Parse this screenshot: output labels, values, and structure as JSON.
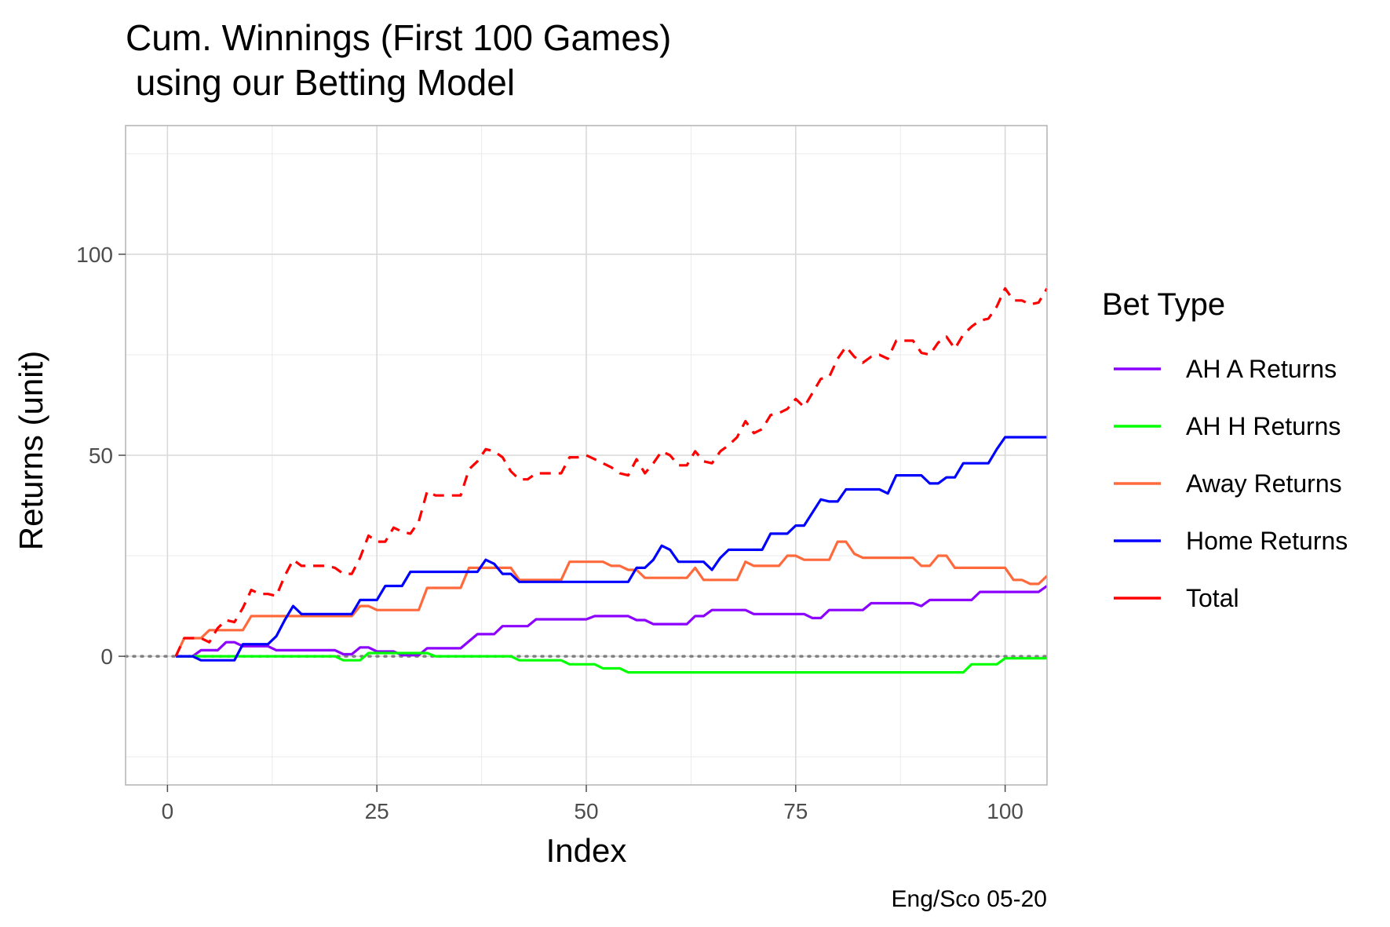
{
  "chart_data": {
    "type": "line",
    "title_lines": [
      "Cum. Winnings (First 100 Games)",
      " using our Betting Model"
    ],
    "xlabel": "Index",
    "ylabel": "Returns (unit)",
    "caption": "Eng/Sco 05-20",
    "xlim": [
      -5,
      105
    ],
    "ylim": [
      -32,
      132
    ],
    "x_ticks": [
      0,
      25,
      50,
      75,
      100
    ],
    "y_ticks": [
      0,
      50,
      100
    ],
    "x_tick_labels": [
      "0",
      "25",
      "50",
      "75",
      "100"
    ],
    "y_tick_labels": [
      "0",
      "50",
      "100"
    ],
    "grid": true,
    "reference_line": {
      "y": 0,
      "style": "dotted",
      "color": "#808080"
    },
    "legend": {
      "title": "Bet Type",
      "position": "right"
    },
    "series": [
      {
        "name": "AH A Returns",
        "color": "#8B00FF",
        "dash": "solid",
        "points": [
          [
            1,
            0
          ],
          [
            3,
            0
          ],
          [
            4,
            1.5
          ],
          [
            6,
            1.5
          ],
          [
            7,
            3.5
          ],
          [
            8,
            3.5
          ],
          [
            9,
            2.5
          ],
          [
            12,
            2.5
          ],
          [
            13,
            1.5
          ],
          [
            20,
            1.5
          ],
          [
            21,
            0.5
          ],
          [
            22,
            0.5
          ],
          [
            23,
            2.2
          ],
          [
            24,
            2.2
          ],
          [
            25,
            1.2
          ],
          [
            27,
            1.2
          ],
          [
            28,
            0.3
          ],
          [
            30,
            0.3
          ],
          [
            31,
            2
          ],
          [
            35,
            2
          ],
          [
            37,
            5.5
          ],
          [
            39,
            5.5
          ],
          [
            40,
            7.5
          ],
          [
            43,
            7.5
          ],
          [
            44,
            9.2
          ],
          [
            50,
            9.2
          ],
          [
            51,
            10
          ],
          [
            55,
            10
          ],
          [
            56,
            9
          ],
          [
            57,
            9
          ],
          [
            58,
            8
          ],
          [
            62,
            8
          ],
          [
            63,
            10
          ],
          [
            64,
            10
          ],
          [
            65,
            11.5
          ],
          [
            69,
            11.5
          ],
          [
            70,
            10.5
          ],
          [
            76,
            10.5
          ],
          [
            77,
            9.5
          ],
          [
            78,
            9.5
          ],
          [
            79,
            11.5
          ],
          [
            83,
            11.5
          ],
          [
            84,
            13.2
          ],
          [
            89,
            13.2
          ],
          [
            90,
            12.5
          ],
          [
            91,
            14
          ],
          [
            96,
            14
          ],
          [
            97,
            16
          ],
          [
            104,
            16
          ],
          [
            105,
            17.5
          ]
        ]
      },
      {
        "name": "AH H Returns",
        "color": "#00FF00",
        "dash": "solid",
        "points": [
          [
            1,
            0
          ],
          [
            20,
            0
          ],
          [
            21,
            -1
          ],
          [
            23,
            -1
          ],
          [
            24,
            0.8
          ],
          [
            31,
            0.8
          ],
          [
            32,
            0
          ],
          [
            41,
            0
          ],
          [
            42,
            -1
          ],
          [
            47,
            -1
          ],
          [
            48,
            -2
          ],
          [
            51,
            -2
          ],
          [
            52,
            -3
          ],
          [
            54,
            -3
          ],
          [
            55,
            -4
          ],
          [
            95,
            -4
          ],
          [
            96,
            -2
          ],
          [
            99,
            -2
          ],
          [
            100,
            -0.5
          ],
          [
            105,
            -0.5
          ]
        ]
      },
      {
        "name": "Away Returns",
        "color": "#FF6A3D",
        "dash": "solid",
        "points": [
          [
            1,
            0
          ],
          [
            2,
            4.5
          ],
          [
            4,
            4.5
          ],
          [
            5,
            6.5
          ],
          [
            9,
            6.5
          ],
          [
            10,
            10
          ],
          [
            22,
            10
          ],
          [
            23,
            12.5
          ],
          [
            24,
            12.5
          ],
          [
            25,
            11.5
          ],
          [
            30,
            11.5
          ],
          [
            31,
            17
          ],
          [
            35,
            17
          ],
          [
            36,
            22
          ],
          [
            41,
            22
          ],
          [
            42,
            19
          ],
          [
            47,
            19
          ],
          [
            48,
            23.5
          ],
          [
            52,
            23.5
          ],
          [
            53,
            22.5
          ],
          [
            54,
            22.5
          ],
          [
            55,
            21.5
          ],
          [
            56,
            21.5
          ],
          [
            57,
            19.5
          ],
          [
            62,
            19.5
          ],
          [
            63,
            22
          ],
          [
            64,
            19
          ],
          [
            68,
            19
          ],
          [
            69,
            23.5
          ],
          [
            70,
            22.5
          ],
          [
            73,
            22.5
          ],
          [
            74,
            25
          ],
          [
            75,
            25
          ],
          [
            76,
            24
          ],
          [
            79,
            24
          ],
          [
            80,
            28.5
          ],
          [
            81,
            28.5
          ],
          [
            82,
            25.5
          ],
          [
            83,
            24.5
          ],
          [
            89,
            24.5
          ],
          [
            90,
            22.5
          ],
          [
            91,
            22.5
          ],
          [
            92,
            25
          ],
          [
            93,
            25
          ],
          [
            94,
            22
          ],
          [
            100,
            22
          ],
          [
            101,
            19
          ],
          [
            102,
            19
          ],
          [
            103,
            18
          ],
          [
            104,
            18
          ],
          [
            105,
            20
          ]
        ]
      },
      {
        "name": "Home Returns",
        "color": "#0000FF",
        "dash": "solid",
        "points": [
          [
            1,
            0
          ],
          [
            3,
            0
          ],
          [
            4,
            -1
          ],
          [
            8,
            -1
          ],
          [
            9,
            3
          ],
          [
            12,
            3
          ],
          [
            13,
            5
          ],
          [
            14,
            9
          ],
          [
            15,
            12.5
          ],
          [
            16,
            10.5
          ],
          [
            22,
            10.5
          ],
          [
            23,
            14
          ],
          [
            25,
            14
          ],
          [
            26,
            17.5
          ],
          [
            28,
            17.5
          ],
          [
            29,
            21
          ],
          [
            35,
            21
          ],
          [
            37,
            21
          ],
          [
            38,
            24
          ],
          [
            39,
            23
          ],
          [
            40,
            20.5
          ],
          [
            41,
            20.5
          ],
          [
            42,
            18.5
          ],
          [
            55,
            18.5
          ],
          [
            56,
            22
          ],
          [
            57,
            22
          ],
          [
            58,
            24
          ],
          [
            59,
            27.5
          ],
          [
            60,
            26.5
          ],
          [
            61,
            23.5
          ],
          [
            64,
            23.5
          ],
          [
            65,
            21.5
          ],
          [
            66,
            24.5
          ],
          [
            67,
            26.5
          ],
          [
            71,
            26.5
          ],
          [
            72,
            30.5
          ],
          [
            74,
            30.5
          ],
          [
            75,
            32.5
          ],
          [
            76,
            32.5
          ],
          [
            78,
            39
          ],
          [
            79,
            38.5
          ],
          [
            80,
            38.5
          ],
          [
            81,
            41.5
          ],
          [
            85,
            41.5
          ],
          [
            86,
            40.5
          ],
          [
            87,
            45
          ],
          [
            90,
            45
          ],
          [
            91,
            43
          ],
          [
            92,
            43
          ],
          [
            93,
            44.5
          ],
          [
            94,
            44.5
          ],
          [
            95,
            48
          ],
          [
            98,
            48
          ],
          [
            99,
            51.5
          ],
          [
            100,
            54.5
          ],
          [
            105,
            54.5
          ]
        ]
      },
      {
        "name": "Total",
        "color": "#FF0000",
        "dash": "dashed",
        "points": [
          [
            1,
            0
          ],
          [
            2,
            4.5
          ],
          [
            4,
            4.5
          ],
          [
            5,
            3.5
          ],
          [
            6,
            7
          ],
          [
            7,
            9
          ],
          [
            8,
            8.5
          ],
          [
            9,
            12
          ],
          [
            10,
            16.5
          ],
          [
            11,
            15.5
          ],
          [
            12,
            15.5
          ],
          [
            13,
            15
          ],
          [
            14,
            20
          ],
          [
            15,
            24
          ],
          [
            16,
            22.5
          ],
          [
            19,
            22.5
          ],
          [
            20,
            22
          ],
          [
            21,
            20.5
          ],
          [
            22,
            20.5
          ],
          [
            23,
            24.5
          ],
          [
            24,
            30
          ],
          [
            25,
            28.5
          ],
          [
            26,
            28.5
          ],
          [
            27,
            32
          ],
          [
            28,
            31
          ],
          [
            29,
            30.5
          ],
          [
            30,
            33.5
          ],
          [
            31,
            41
          ],
          [
            32,
            40
          ],
          [
            35,
            40
          ],
          [
            36,
            46.5
          ],
          [
            37,
            48.5
          ],
          [
            38,
            51.5
          ],
          [
            39,
            51
          ],
          [
            40,
            49.5
          ],
          [
            41,
            46
          ],
          [
            42,
            44
          ],
          [
            43,
            44
          ],
          [
            44,
            45.5
          ],
          [
            47,
            45.5
          ],
          [
            48,
            49.5
          ],
          [
            49,
            49.5
          ],
          [
            50,
            50
          ],
          [
            51,
            49
          ],
          [
            52,
            48
          ],
          [
            53,
            47
          ],
          [
            54,
            45.5
          ],
          [
            55,
            45
          ],
          [
            56,
            49
          ],
          [
            57,
            45.5
          ],
          [
            58,
            48
          ],
          [
            59,
            51
          ],
          [
            60,
            50
          ],
          [
            61,
            47.5
          ],
          [
            62,
            47.5
          ],
          [
            63,
            51
          ],
          [
            64,
            48.5
          ],
          [
            65,
            48
          ],
          [
            66,
            51
          ],
          [
            67,
            52.5
          ],
          [
            68,
            54.5
          ],
          [
            69,
            58.5
          ],
          [
            70,
            55.5
          ],
          [
            71,
            56.5
          ],
          [
            72,
            60
          ],
          [
            73,
            60.5
          ],
          [
            74,
            61.5
          ],
          [
            75,
            64
          ],
          [
            76,
            62
          ],
          [
            77,
            65.5
          ],
          [
            78,
            69
          ],
          [
            79,
            69.5
          ],
          [
            80,
            74
          ],
          [
            81,
            77
          ],
          [
            82,
            74.5
          ],
          [
            83,
            73
          ],
          [
            84,
            74.5
          ],
          [
            85,
            75
          ],
          [
            86,
            74
          ],
          [
            87,
            78.5
          ],
          [
            88,
            78.5
          ],
          [
            89,
            78.5
          ],
          [
            90,
            75.5
          ],
          [
            91,
            75
          ],
          [
            92,
            78
          ],
          [
            93,
            79.5
          ],
          [
            94,
            76.5
          ],
          [
            95,
            80
          ],
          [
            96,
            82
          ],
          [
            97,
            83.5
          ],
          [
            98,
            84
          ],
          [
            99,
            87
          ],
          [
            100,
            91.5
          ],
          [
            101,
            88.5
          ],
          [
            102,
            88.5
          ],
          [
            103,
            87.5
          ],
          [
            104,
            88
          ],
          [
            105,
            91.5
          ]
        ]
      }
    ]
  }
}
